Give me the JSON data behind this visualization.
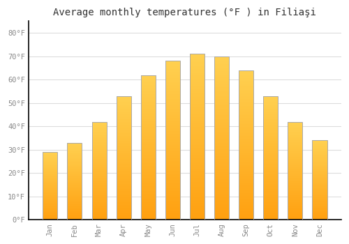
{
  "months": [
    "Jan",
    "Feb",
    "Mar",
    "Apr",
    "May",
    "Jun",
    "Jul",
    "Aug",
    "Sep",
    "Oct",
    "Nov",
    "Dec"
  ],
  "values": [
    29,
    33,
    42,
    53,
    62,
    68,
    71,
    70,
    64,
    53,
    42,
    34
  ],
  "bar_color_top": "#FFD050",
  "bar_color_bottom": "#FFA010",
  "bar_edge_color": "#AAAAAA",
  "background_color": "#FFFFFF",
  "title": "Average monthly temperatures (°F ) in Filiaşi",
  "title_fontsize": 10,
  "yticks": [
    0,
    10,
    20,
    30,
    40,
    50,
    60,
    70,
    80
  ],
  "ylim": [
    0,
    85
  ],
  "grid_color": "#DDDDDD",
  "tick_color": "#888888",
  "font_family": "monospace",
  "bar_width": 0.6
}
